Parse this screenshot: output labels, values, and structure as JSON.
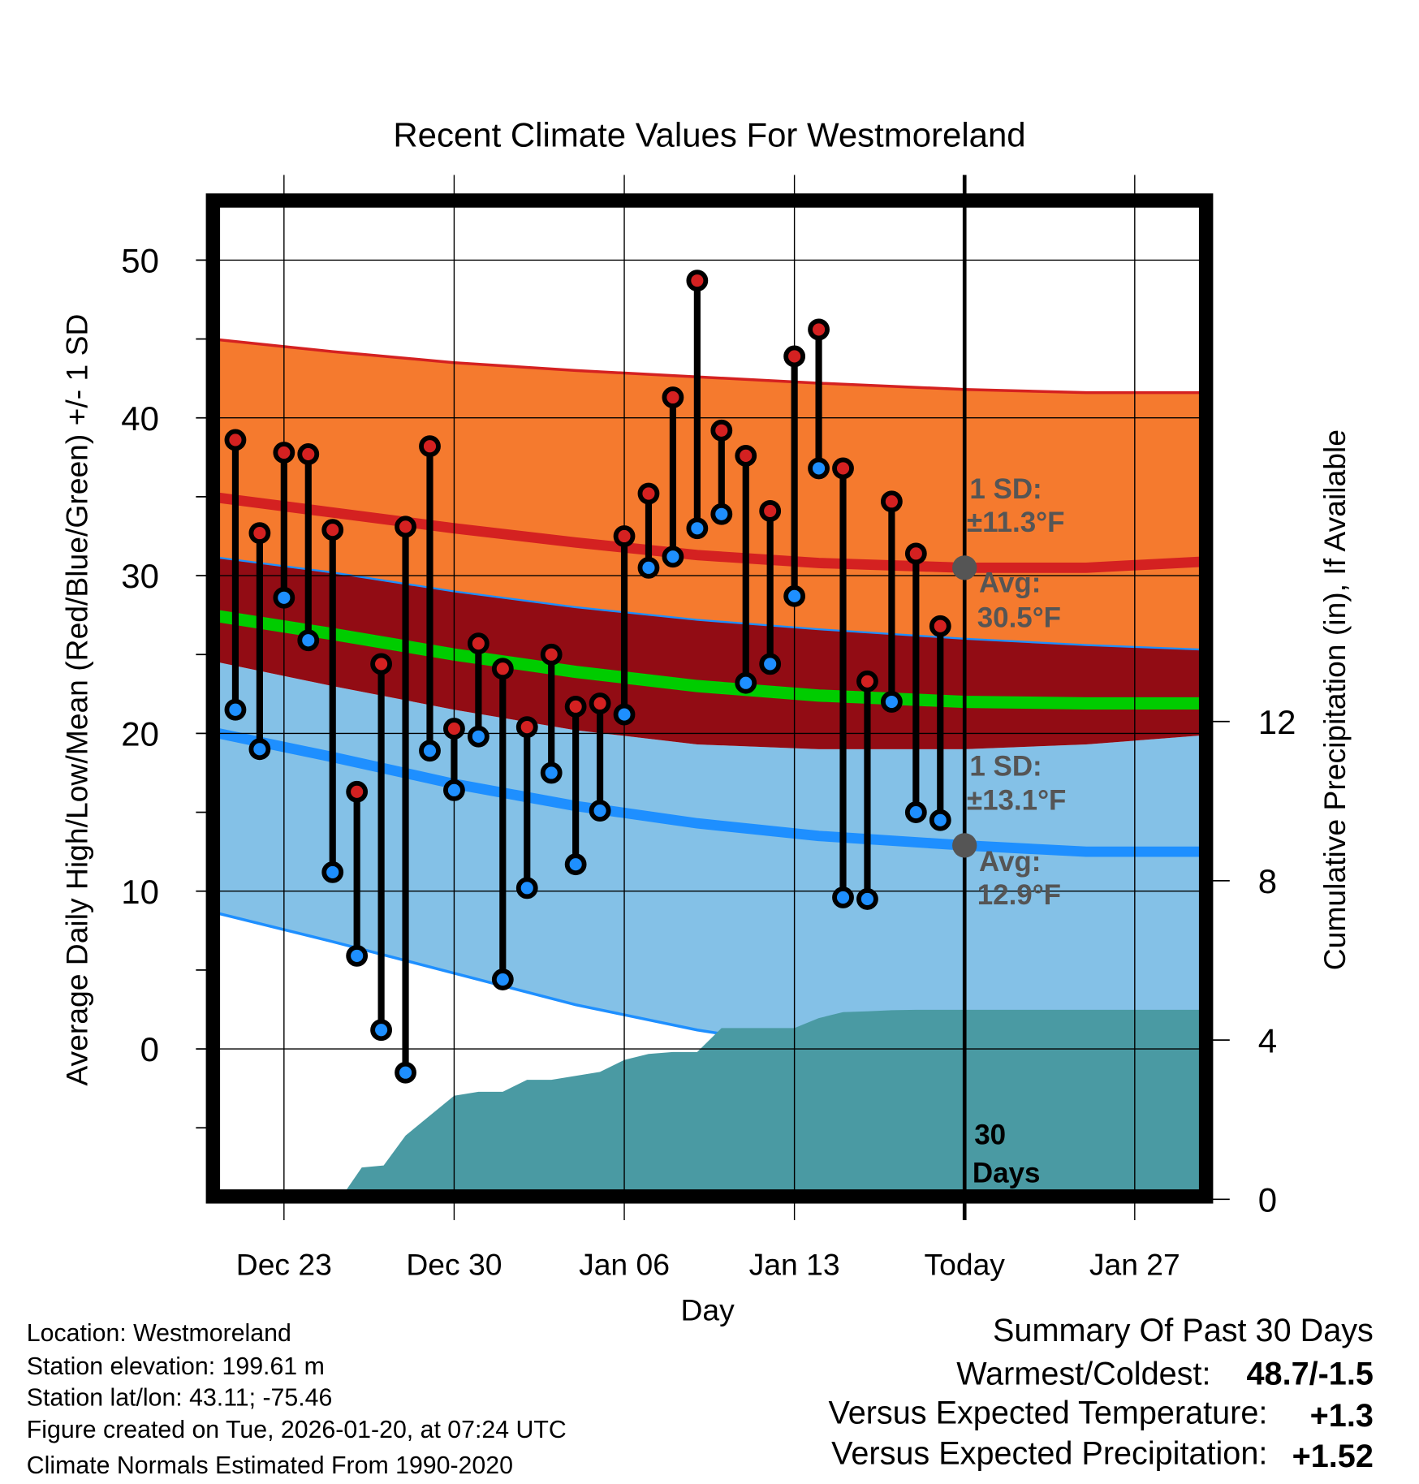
{
  "chart_data": {
    "type": "line",
    "title": "Recent Climate Values For Westmoreland",
    "xlabel": "Day",
    "ylabel": "Average Daily High/Low/Mean (Red/Blue/Green) +/- 1 SD",
    "y2label": "Cumulative Precipitation (in), If Available",
    "ylim": [
      -9,
      53.5
    ],
    "y2lim": [
      0,
      14.8
    ],
    "yticks": [
      "0",
      "10",
      "20",
      "30",
      "40",
      "50"
    ],
    "y2ticks": [
      "0",
      "4",
      "8",
      "12"
    ],
    "xticks": [
      "Dec 23",
      "Dec 30",
      "Jan 06",
      "Jan 13",
      "Today",
      "Jan 27"
    ],
    "xtick_days": [
      3,
      10,
      17,
      24,
      31,
      38
    ],
    "day_origin": "Dec 20",
    "grid": true,
    "observed": {
      "days": [
        "Dec 21",
        "Dec 22",
        "Dec 23",
        "Dec 24",
        "Dec 25",
        "Dec 26",
        "Dec 27",
        "Dec 28",
        "Dec 29",
        "Dec 30",
        "Dec 31",
        "Jan 01",
        "Jan 02",
        "Jan 03",
        "Jan 04",
        "Jan 05",
        "Jan 06",
        "Jan 07",
        "Jan 08",
        "Jan 09",
        "Jan 10",
        "Jan 11",
        "Jan 12",
        "Jan 13",
        "Jan 14",
        "Jan 15",
        "Jan 16",
        "Jan 17",
        "Jan 18",
        "Jan 19"
      ],
      "high": [
        38.6,
        32.7,
        37.8,
        37.7,
        32.9,
        16.3,
        24.4,
        33.1,
        38.2,
        20.3,
        25.7,
        24.1,
        20.4,
        25.0,
        21.7,
        21.9,
        32.5,
        35.2,
        41.3,
        48.7,
        39.2,
        37.6,
        34.1,
        43.9,
        45.6,
        36.8,
        23.3,
        34.7,
        31.4,
        26.8
      ],
      "low": [
        21.5,
        19.0,
        28.6,
        25.9,
        11.2,
        5.9,
        1.2,
        -1.5,
        18.9,
        16.4,
        19.8,
        4.4,
        10.2,
        17.5,
        11.7,
        15.1,
        21.2,
        30.5,
        31.2,
        33.0,
        33.9,
        23.2,
        24.4,
        28.7,
        36.8,
        9.6,
        9.5,
        22.0,
        15.0,
        14.5
      ]
    },
    "normals": {
      "days": [
        0,
        5,
        10,
        15,
        20,
        25,
        31,
        36,
        41
      ],
      "high_upper": [
        45.0,
        44.2,
        43.5,
        43.0,
        42.6,
        42.2,
        41.8,
        41.6,
        41.6
      ],
      "high_mean": [
        35.0,
        34.0,
        33.0,
        32.1,
        31.3,
        30.8,
        30.5,
        30.5,
        30.9
      ],
      "high_lower": [
        31.2,
        30.2,
        29.0,
        28.0,
        27.2,
        26.6,
        26.0,
        25.6,
        25.3
      ],
      "mean": [
        27.5,
        26.3,
        25.0,
        23.9,
        23.0,
        22.4,
        22.0,
        21.9,
        21.9
      ],
      "low_upper": [
        24.6,
        23.0,
        21.5,
        20.2,
        19.3,
        19.0,
        19.0,
        19.3,
        19.9
      ],
      "low_mean": [
        20.1,
        18.5,
        16.8,
        15.4,
        14.3,
        13.5,
        12.9,
        12.5,
        12.5
      ],
      "low_lower": [
        8.7,
        6.8,
        4.8,
        2.8,
        1.2,
        0.0,
        -1.4,
        -2.5,
        -3.2
      ]
    },
    "precip": {
      "days": [
        0,
        5.3,
        6.2,
        7.1,
        8.0,
        9.0,
        10.0,
        11.0,
        12.0,
        13.0,
        14.0,
        15.0,
        16.0,
        17.0,
        18.0,
        19.0,
        20.0,
        21.0,
        22.0,
        23.0,
        24.0,
        25.0,
        26.0,
        27.0,
        28.0,
        29.0,
        31.0,
        41.0
      ],
      "cumulative": [
        0,
        0,
        0.8,
        0.85,
        1.6,
        2.1,
        2.6,
        2.7,
        2.7,
        3.0,
        3.0,
        3.1,
        3.2,
        3.5,
        3.65,
        3.7,
        3.7,
        4.3,
        4.3,
        4.3,
        4.3,
        4.55,
        4.7,
        4.72,
        4.75,
        4.76,
        4.76,
        4.76
      ]
    },
    "annotations": {
      "high_sd_label": "1 SD:",
      "high_sd_value": "±11.3°F",
      "high_avg_label": "Avg:",
      "high_avg_value": "30.5°F",
      "low_sd_label": "1 SD:",
      "low_sd_value": "±13.1°F",
      "low_avg_label": "Avg:",
      "low_avg_value": "12.9°F",
      "days_count": "30",
      "days_word": "Days"
    },
    "colors": {
      "high_band": "#f57a2e",
      "mid_band": "#920c14",
      "low_band": "#84c1e7",
      "high_line": "#d42121",
      "low_line": "#1e8fff",
      "mean_line": "#00cc00",
      "precip": "#4a9aa3"
    }
  },
  "footer": {
    "location": "Location: Westmoreland",
    "elevation": "Station elevation: 199.61 m",
    "latlon": "Station lat/lon: 43.11; -75.46",
    "created": "Figure created on Tue, 2026-01-20, at 07:24 UTC",
    "normals": "Climate Normals Estimated From 1990-2020"
  },
  "summary": {
    "title": "Summary Of Past 30 Days",
    "warmest_label": "Warmest/Coldest:",
    "warmest_value": "48.7/-1.5",
    "temp_label": "Versus Expected Temperature:",
    "temp_value": "+1.3",
    "precip_label": "Versus Expected Precipitation:",
    "precip_value": "+1.52"
  }
}
